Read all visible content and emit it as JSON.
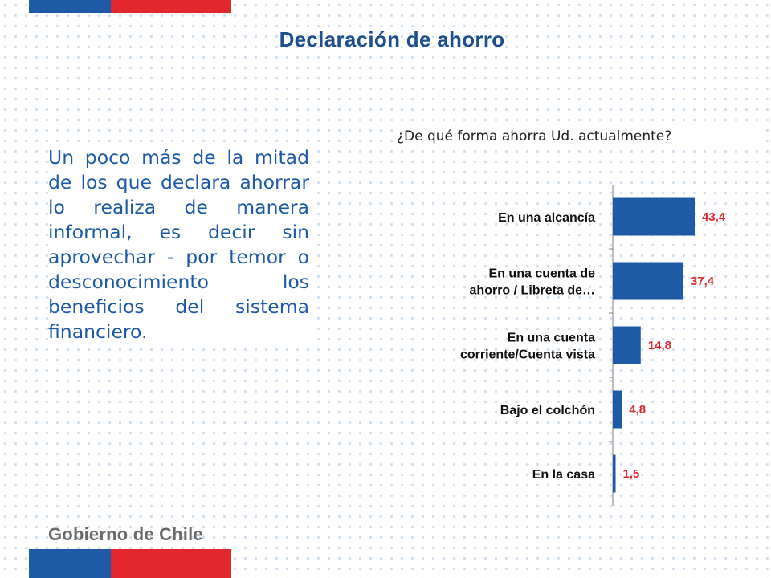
{
  "title": "Declaración de ahorro",
  "body_text": "Un poco más de la mitad de los que declara ahorrar lo realiza de manera informal, es decir sin aprovechar - por temor o desconocimiento los beneficios del sistema financiero.",
  "question": "¿De qué forma ahorra Ud. actualmente?",
  "logo_text": "Gobierno de Chile",
  "colors": {
    "title": "#1f4e8c",
    "bar": "#1f5aa6",
    "value_label": "#e1282e",
    "flag_blue": "#1f5aa6",
    "flag_red": "#e1282e"
  },
  "chart_data": {
    "type": "bar",
    "orientation": "horizontal",
    "categories": [
      [
        "En una alcancía"
      ],
      [
        "En una cuenta de",
        "ahorro / Libreta de…"
      ],
      [
        "En una cuenta",
        "corriente/Cuenta vista"
      ],
      [
        "Bajo el colchón"
      ],
      [
        "En la casa"
      ]
    ],
    "values": [
      43.4,
      37.4,
      14.8,
      4.8,
      1.5
    ],
    "value_labels": [
      "43,4",
      "37,4",
      "14,8",
      "4,8",
      "1,5"
    ],
    "xlim": [
      0,
      43.4
    ],
    "grid": false,
    "legend": "none"
  }
}
